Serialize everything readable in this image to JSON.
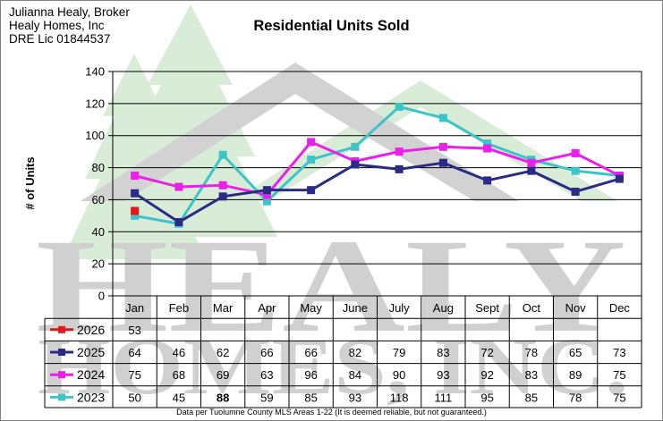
{
  "header": {
    "line1": "Julianna Healy, Broker",
    "line2": "Healy Homes, Inc",
    "line3": "DRE Lic 01844537"
  },
  "footnote": "Data per Tuolumne County MLS Areas 1-22 (It is deemed reliable, but not guaranteed.)",
  "watermark": {
    "word1": "HEALY",
    "word2": "HOMES, INC."
  },
  "chart_data": {
    "type": "line",
    "title": "Residential Units Sold",
    "xlabel": "",
    "ylabel": "# of Units",
    "ylim": [
      0,
      140
    ],
    "yticks": [
      0,
      20,
      40,
      60,
      80,
      100,
      120,
      140
    ],
    "grid": true,
    "legend_placement": "left of data table",
    "categories": [
      "Jan",
      "Feb",
      "Mar",
      "Apr",
      "May",
      "June",
      "July",
      "Aug",
      "Sept",
      "Oct",
      "Nov",
      "Dec"
    ],
    "series": [
      {
        "name": "2026",
        "color": "#e8141c",
        "values": [
          53,
          null,
          null,
          null,
          null,
          null,
          null,
          null,
          null,
          null,
          null,
          null
        ]
      },
      {
        "name": "2025",
        "color": "#2b2b85",
        "values": [
          64,
          46,
          62,
          66,
          66,
          82,
          79,
          83,
          72,
          78,
          65,
          73
        ]
      },
      {
        "name": "2024",
        "color": "#ea1fea",
        "values": [
          75,
          68,
          69,
          63,
          96,
          84,
          90,
          93,
          92,
          83,
          89,
          75
        ]
      },
      {
        "name": "2023",
        "color": "#3cc4c8",
        "values": [
          50,
          45,
          88,
          59,
          85,
          93,
          118,
          111,
          95,
          85,
          78,
          75
        ]
      }
    ],
    "bold_cells": {
      "2023": [
        2
      ]
    }
  }
}
